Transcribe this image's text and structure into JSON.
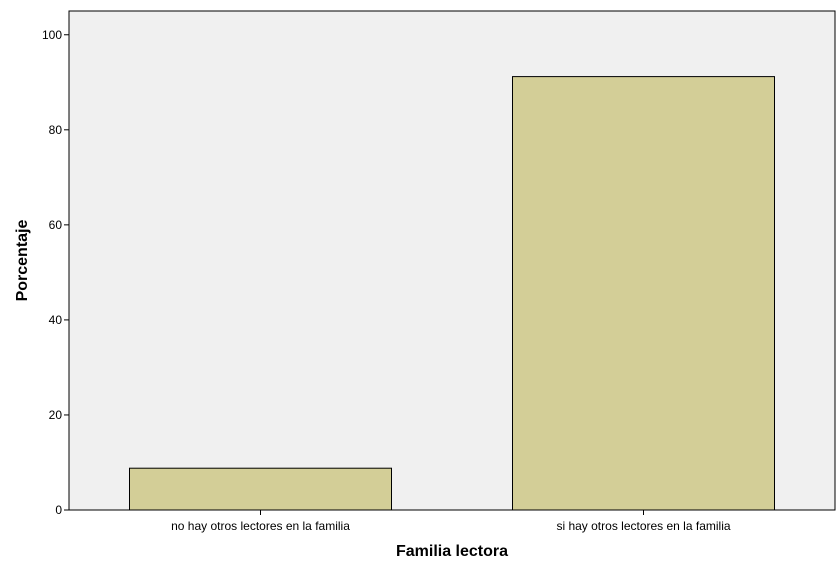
{
  "chart_data": {
    "type": "bar",
    "categories": [
      "no hay otros lectores en la familia",
      "si hay otros lectores en la familia"
    ],
    "values": [
      8.8,
      91.2
    ],
    "xlabel": "Familia lectora",
    "ylabel": "Porcentaje",
    "ylim": [
      0,
      105
    ],
    "yticks": [
      0,
      20,
      40,
      60,
      80,
      100
    ],
    "grid": false,
    "colors": {
      "plot_background": "#f0f0f0",
      "bar_fill": "#d3ce97",
      "bar_stroke": "#000000"
    }
  }
}
